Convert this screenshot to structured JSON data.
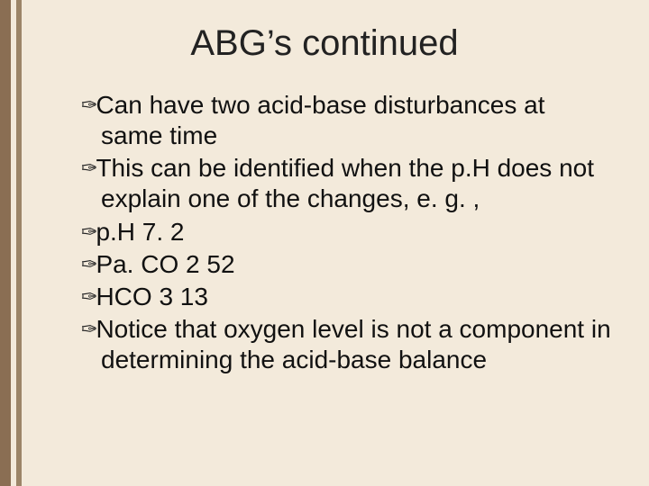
{
  "slide": {
    "background_color": "#f3eadb",
    "left_border_color": "#8a6e53",
    "left_stripe_color": "#9c8568",
    "title": "ABG’s continued",
    "title_fontsize": 40,
    "title_color": "#222222",
    "body_fontsize": 28,
    "body_color": "#111111",
    "bullet_glyph": "✑",
    "items": [
      "Can have two acid-base disturbances at same time",
      "This can be identified when the p.H does not explain one of the changes, e. g. ,",
      "p.H 7. 2",
      "Pa. CO 2 52",
      "HCO 3 13",
      "Notice that oxygen level is not a component in determining the acid-base balance"
    ]
  }
}
